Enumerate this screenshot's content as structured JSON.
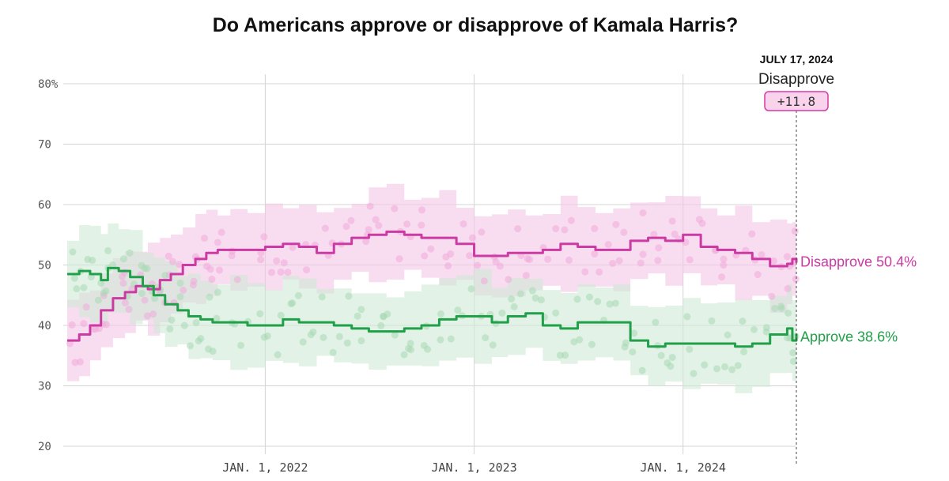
{
  "chart_data": {
    "type": "line",
    "title": "Do Americans approve or disapprove of Kamala Harris?",
    "xlabel": "",
    "ylabel": "",
    "ylim": [
      20,
      80
    ],
    "xlim": [
      "2021-01-20",
      "2024-07-17"
    ],
    "y_ticks": [
      {
        "value": 80,
        "label": "80%"
      },
      {
        "value": 70,
        "label": "70"
      },
      {
        "value": 60,
        "label": "60"
      },
      {
        "value": 50,
        "label": "50"
      },
      {
        "value": 40,
        "label": "40"
      },
      {
        "value": 30,
        "label": "30"
      },
      {
        "value": 20,
        "label": "20"
      }
    ],
    "x_ticks": [
      {
        "date": "2022-01-01",
        "label": "JAN. 1, 2022"
      },
      {
        "date": "2023-01-01",
        "label": "JAN. 1, 2023"
      },
      {
        "date": "2024-01-01",
        "label": "JAN. 1, 2024"
      }
    ],
    "grid": true,
    "highlight": {
      "date": "2024-07-17",
      "date_label": "JULY 17, 2024",
      "leader": "Disapprove",
      "margin": "+11.8",
      "color": "#d63aa6",
      "fill": "#f9d3ec"
    },
    "series": [
      {
        "name": "Disapprove",
        "end_label": "Disapprove 50.4%",
        "color": "#cc3aa3",
        "band_color": "#f4c4e6",
        "points_color": "#f0a9db",
        "points": [
          [
            "2021-01-20",
            37.5
          ],
          [
            "2021-02-10",
            38.5
          ],
          [
            "2021-03-01",
            40
          ],
          [
            "2021-03-20",
            42.5
          ],
          [
            "2021-04-10",
            44.5
          ],
          [
            "2021-05-01",
            45.5
          ],
          [
            "2021-05-20",
            46.5
          ],
          [
            "2021-06-10",
            46
          ],
          [
            "2021-07-01",
            47.5
          ],
          [
            "2021-07-20",
            48.5
          ],
          [
            "2021-08-10",
            50
          ],
          [
            "2021-09-01",
            51
          ],
          [
            "2021-09-20",
            52
          ],
          [
            "2021-10-10",
            52.5
          ],
          [
            "2021-11-01",
            52.5
          ],
          [
            "2021-12-01",
            52.5
          ],
          [
            "2022-01-01",
            53
          ],
          [
            "2022-02-01",
            53.5
          ],
          [
            "2022-03-01",
            53
          ],
          [
            "2022-04-01",
            52
          ],
          [
            "2022-05-01",
            53.5
          ],
          [
            "2022-06-01",
            54.5
          ],
          [
            "2022-07-01",
            55
          ],
          [
            "2022-08-01",
            55.5
          ],
          [
            "2022-09-01",
            55
          ],
          [
            "2022-10-01",
            54.5
          ],
          [
            "2022-11-01",
            54.5
          ],
          [
            "2022-12-01",
            53.5
          ],
          [
            "2023-01-01",
            51.5
          ],
          [
            "2023-02-01",
            51.5
          ],
          [
            "2023-03-01",
            52
          ],
          [
            "2023-04-01",
            52
          ],
          [
            "2023-05-01",
            52.5
          ],
          [
            "2023-06-01",
            53.5
          ],
          [
            "2023-07-01",
            53
          ],
          [
            "2023-08-01",
            52.5
          ],
          [
            "2023-09-01",
            52.5
          ],
          [
            "2023-10-01",
            54
          ],
          [
            "2023-11-01",
            54.5
          ],
          [
            "2023-12-01",
            54
          ],
          [
            "2024-01-01",
            55
          ],
          [
            "2024-02-01",
            53
          ],
          [
            "2024-03-01",
            52.5
          ],
          [
            "2024-04-01",
            52
          ],
          [
            "2024-05-01",
            51
          ],
          [
            "2024-06-01",
            49.8
          ],
          [
            "2024-07-01",
            50.2
          ],
          [
            "2024-07-10",
            51
          ],
          [
            "2024-07-17",
            50.4
          ]
        ]
      },
      {
        "name": "Approve",
        "end_label": "Approve 38.6%",
        "color": "#21a04a",
        "band_color": "#cfead5",
        "points_color": "#a8d8b4",
        "points": [
          [
            "2021-01-20",
            48.5
          ],
          [
            "2021-02-10",
            49
          ],
          [
            "2021-03-01",
            48.5
          ],
          [
            "2021-03-20",
            47.5
          ],
          [
            "2021-04-01",
            49.5
          ],
          [
            "2021-04-20",
            49
          ],
          [
            "2021-05-10",
            48
          ],
          [
            "2021-06-01",
            46.5
          ],
          [
            "2021-06-20",
            45
          ],
          [
            "2021-07-10",
            43.5
          ],
          [
            "2021-08-01",
            42.5
          ],
          [
            "2021-08-20",
            41.5
          ],
          [
            "2021-09-10",
            41
          ],
          [
            "2021-10-01",
            40.5
          ],
          [
            "2021-11-01",
            40.5
          ],
          [
            "2021-12-01",
            40
          ],
          [
            "2022-01-01",
            40
          ],
          [
            "2022-02-01",
            41
          ],
          [
            "2022-03-01",
            40.5
          ],
          [
            "2022-04-01",
            40.5
          ],
          [
            "2022-05-01",
            40
          ],
          [
            "2022-06-01",
            39.5
          ],
          [
            "2022-07-01",
            39
          ],
          [
            "2022-08-01",
            39
          ],
          [
            "2022-09-01",
            39.5
          ],
          [
            "2022-10-01",
            40
          ],
          [
            "2022-11-01",
            41
          ],
          [
            "2022-12-01",
            41.5
          ],
          [
            "2023-01-01",
            41.5
          ],
          [
            "2023-02-01",
            40.5
          ],
          [
            "2023-03-01",
            41.5
          ],
          [
            "2023-04-01",
            42
          ],
          [
            "2023-05-01",
            40
          ],
          [
            "2023-06-01",
            39.5
          ],
          [
            "2023-07-01",
            40.5
          ],
          [
            "2023-08-01",
            40.5
          ],
          [
            "2023-09-01",
            40.5
          ],
          [
            "2023-10-01",
            37.5
          ],
          [
            "2023-11-01",
            36.5
          ],
          [
            "2023-12-01",
            37
          ],
          [
            "2024-01-01",
            37
          ],
          [
            "2024-02-01",
            37
          ],
          [
            "2024-03-01",
            37
          ],
          [
            "2024-04-01",
            36.5
          ],
          [
            "2024-05-01",
            37
          ],
          [
            "2024-06-01",
            38.5
          ],
          [
            "2024-07-01",
            39.5
          ],
          [
            "2024-07-10",
            37.5
          ],
          [
            "2024-07-17",
            38.6
          ]
        ]
      }
    ]
  }
}
